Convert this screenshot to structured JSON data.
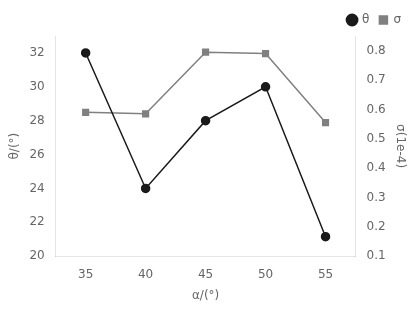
{
  "chart_data": {
    "type": "line",
    "xlabel": "α/(°)",
    "ylabel": "θ/(°)",
    "y2label": "σ(1e-4)",
    "x": [
      35,
      40,
      45,
      50,
      55
    ],
    "series": [
      {
        "name": "σ",
        "color": "#808080",
        "marker": "square",
        "line_style": "solid",
        "axis": "y2",
        "values": [
          0.59,
          0.585,
          0.795,
          0.79,
          0.555
        ]
      },
      {
        "name": "θ",
        "color": "#1a1a1a",
        "marker": "circle",
        "line_style": "solid",
        "values": [
          32.0,
          24.0,
          28.0,
          30.0,
          21.15
        ]
      }
    ],
    "xlim": [
      32.5,
      57.5
    ],
    "xticks": [
      35,
      40,
      45,
      50,
      55
    ],
    "ylim": [
      20,
      33
    ],
    "yticks": [
      20,
      22,
      24,
      26,
      28,
      30,
      32
    ],
    "y2lim": [
      0.1,
      0.85
    ],
    "y2ticks": [
      0.1,
      0.2,
      0.3,
      0.4,
      0.5,
      0.6,
      0.7,
      0.8
    ],
    "grid": false,
    "legend": "upper right"
  }
}
